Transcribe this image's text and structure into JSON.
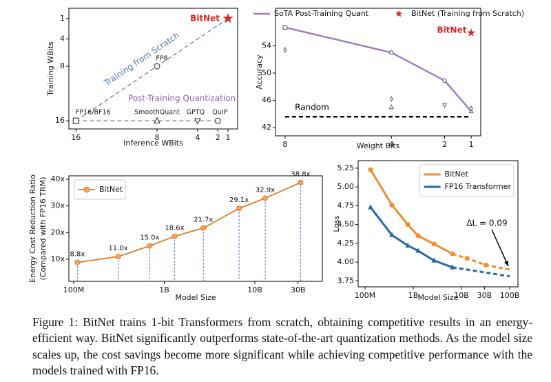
{
  "caption": "Figure 1: BitNet trains 1-bit Transformers from scratch, obtaining competitive results in an energy-efficient way. BitNet significantly outperforms state-of-the-art quantization methods. As the model size scales up, the cost savings become more significant while achieving competitive performance with the models trained with FP16.",
  "chart_data": [
    {
      "type": "scatter",
      "xlabel": "Inference WBits",
      "ylabel": "Training WBits",
      "xlim": [
        16.7,
        0.05
      ],
      "ylim": [
        17.2,
        -0.5
      ],
      "xticks": [
        16,
        8,
        4,
        2,
        1
      ],
      "yticks": [
        1,
        4,
        8,
        16
      ],
      "marker_fill": "#ffffff",
      "series": [
        {
          "label": "Training from Scratch",
          "color": "#4b77b3",
          "line": "dashed",
          "x": [
            16,
            1
          ],
          "values": [
            16,
            1
          ]
        },
        {
          "label": "Post-Training Quantization",
          "color": "#8e62b5",
          "line": "dashed",
          "x": [
            16,
            2
          ],
          "values": [
            16,
            16
          ]
        }
      ],
      "points": [
        {
          "label": "FP16/BF16",
          "x": 16,
          "y": 16,
          "marker": "square",
          "color": "#222222"
        },
        {
          "label": "SmoothQuant",
          "x": 8,
          "y": 16,
          "marker": "triangle",
          "color": "#222222"
        },
        {
          "label": "GPTQ",
          "x": 4,
          "y": 16,
          "marker": "triangle-down",
          "color": "#222222"
        },
        {
          "label": "QuIP",
          "x": 2,
          "y": 16,
          "marker": "circle",
          "color": "#222222"
        },
        {
          "label": "FP8",
          "x": 8,
          "y": 8,
          "marker": "circle",
          "color": "#222222"
        },
        {
          "label": "BitNet",
          "x": 1,
          "y": 1,
          "marker": "star",
          "color": "#d62728"
        }
      ]
    },
    {
      "type": "line",
      "xlabel": "Weight Bits",
      "ylabel": "Accuracy",
      "xlim": [
        8.36,
        0.64
      ],
      "ylim": [
        40.8,
        59.5
      ],
      "xticks": [
        8,
        4,
        2,
        1
      ],
      "yticks": [
        42,
        46,
        50,
        54
      ],
      "marker_fill": "#ffffff",
      "legend": "top",
      "series": [
        {
          "name": "SoTA Post-Training Quant",
          "color": "#9b7bc9",
          "line": "solid",
          "markers": [
            "square",
            "circle",
            "circle",
            "triangle"
          ],
          "marker_color": "#555555",
          "x": [
            8,
            4,
            2,
            1
          ],
          "values": [
            56.7,
            53.0,
            48.9,
            44.4
          ]
        },
        {
          "name": "BitNet (Training from Scratch)",
          "color": "#d62728",
          "marker": "star",
          "line": "none",
          "x": [
            1
          ],
          "values": [
            55.9
          ]
        },
        {
          "marker": "diamond",
          "color": "#555555",
          "line": "none",
          "x": [
            8,
            4,
            1
          ],
          "values": [
            53.4,
            46.2,
            44.8
          ]
        },
        {
          "marker": "triangle",
          "color": "#555555",
          "line": "none",
          "x": [
            4
          ],
          "values": [
            45.0
          ]
        },
        {
          "marker": "triangle-down",
          "color": "#555555",
          "line": "none",
          "x": [
            2
          ],
          "values": [
            45.3
          ]
        },
        {
          "label": "Random",
          "color": "#000000",
          "line": "dashed",
          "x": [
            8,
            1
          ],
          "values": [
            43.6,
            43.6
          ]
        }
      ],
      "annotations": [
        {
          "text": "BitNet",
          "color": "#d62728"
        }
      ]
    },
    {
      "type": "line",
      "xlabel": "Model Size",
      "ylabel": [
        "Energy Cost Reduction Ratio",
        "(Compared with FP16 TRM)"
      ],
      "xscale": "log",
      "xlim": [
        88500000,
        55600000000
      ],
      "ylim": [
        1.7,
        41.3
      ],
      "xticks": [
        {
          "value": 100000000,
          "label": "100M"
        },
        {
          "value": 1000000000,
          "label": "1B"
        },
        {
          "value": 10000000000,
          "label": "10B"
        },
        {
          "value": 30000000000,
          "label": "30B"
        }
      ],
      "yticks": [
        {
          "value": 10,
          "label": "10x"
        },
        {
          "value": 20,
          "label": "20x"
        },
        {
          "value": 30,
          "label": "30x"
        },
        {
          "value": 40,
          "label": "40x"
        }
      ],
      "marker_fill": "#f3a463",
      "drop_lines": {
        "color": "#5b8fd1"
      },
      "legend": "upper left",
      "series": [
        {
          "name": "BitNet",
          "color": "#e07b24",
          "marker": "circle",
          "line": "solid",
          "x": [
            110000000,
            310000000,
            690000000,
            1300000000,
            2700000000,
            6700000000,
            13000000000,
            32000000000
          ],
          "values": [
            8.8,
            11.0,
            15.0,
            18.6,
            21.7,
            29.1,
            32.9,
            38.8
          ],
          "value_labels": [
            "8.8x",
            "11.0x",
            "15.0x",
            "18.6x",
            "21.7x",
            "29.1x",
            "32.9x",
            "38.8x"
          ]
        }
      ]
    },
    {
      "type": "line",
      "xlabel": "Model Size",
      "ylabel": "Loss",
      "xscale": "log",
      "xlim": [
        72000000,
        148000000000
      ],
      "ylim": [
        3.67,
        5.35
      ],
      "xticks": [
        {
          "value": 100000000,
          "label": "100M"
        },
        {
          "value": 1000000000,
          "label": "1B"
        },
        {
          "value": 10000000000,
          "label": "10B"
        },
        {
          "value": 30000000000,
          "label": "30B"
        },
        {
          "value": 100000000000,
          "label": "100B"
        }
      ],
      "yticks": [
        5.25,
        {
          "value": 5,
          "label": "5.00"
        },
        4.75,
        {
          "value": 4.5,
          "label": "4.50"
        },
        4.25,
        {
          "value": 4,
          "label": "4.00"
        },
        3.75
      ],
      "projection_start": 10000000000,
      "legend": "upper right",
      "legend_markers": false,
      "series": [
        {
          "name": "BitNet",
          "color": "#f28c2d",
          "marker": "circle",
          "line": "solid",
          "x": [
            130000000,
            360000000,
            770000000,
            1260000000,
            2700000000,
            6500000000,
            13000000000,
            32000000000
          ],
          "values": [
            5.23,
            4.76,
            4.5,
            4.35,
            4.24,
            4.11,
            4.05,
            3.96
          ],
          "projection": {
            "x": [
              100000000000
            ],
            "values": [
              3.9
            ]
          }
        },
        {
          "name": "FP16 Transformer",
          "color": "#2a6aa8",
          "marker": "triangle",
          "line": "solid",
          "x": [
            130000000,
            360000000,
            770000000,
            1260000000,
            2700000000,
            6500000000
          ],
          "values": [
            4.73,
            4.36,
            4.22,
            4.15,
            4.02,
            3.93
          ],
          "projection": {
            "x": [
              100000000000
            ],
            "values": [
              3.81
            ]
          }
        }
      ],
      "annotations": [
        {
          "text": "ΔL = 0.09",
          "color": "#000000"
        }
      ]
    }
  ]
}
